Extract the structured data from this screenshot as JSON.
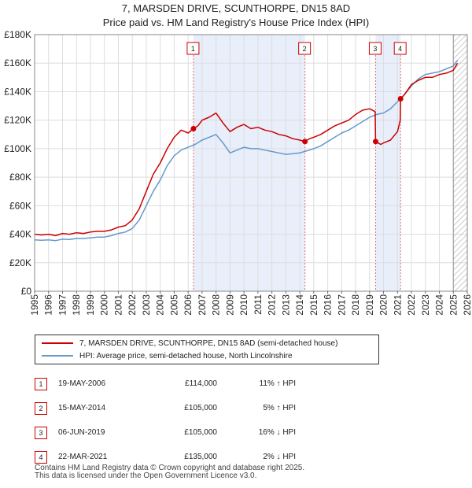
{
  "title_line1": "7, MARSDEN DRIVE, SCUNTHORPE, DN15 8AD",
  "title_line2": "Price paid vs. HM Land Registry's House Price Index (HPI)",
  "colors": {
    "price_line": "#cc0000",
    "hpi_line": "#6699cc",
    "shade": "#e8eefa",
    "vline": "#e07070",
    "hatch": "#bbbbbb"
  },
  "legend": {
    "price_label": "7, MARSDEN DRIVE, SCUNTHORPE, DN15 8AD (semi-detached house)",
    "hpi_label": "HPI: Average price, semi-detached house, North Lincolnshire"
  },
  "transactions": [
    {
      "num": "1",
      "date": "19-MAY-2006",
      "price": "£114,000",
      "hpi": "11% ↑ HPI"
    },
    {
      "num": "2",
      "date": "15-MAY-2014",
      "price": "£105,000",
      "hpi": "5% ↑ HPI"
    },
    {
      "num": "3",
      "date": "06-JUN-2019",
      "price": "£105,000",
      "hpi": "16% ↓ HPI"
    },
    {
      "num": "4",
      "date": "22-MAR-2021",
      "price": "£135,000",
      "hpi": "2% ↓ HPI"
    }
  ],
  "footer_line1": "Contains HM Land Registry data © Crown copyright and database right 2025.",
  "footer_line2": "This data is licensed under the Open Government Licence v3.0.",
  "chart_data": {
    "type": "line",
    "xlim": [
      1995,
      2026
    ],
    "ylim": [
      0,
      180000
    ],
    "yticks": [
      {
        "value": 0,
        "label": "£0"
      },
      {
        "value": 20000,
        "label": "£20K"
      },
      {
        "value": 40000,
        "label": "£40K"
      },
      {
        "value": 60000,
        "label": "£60K"
      },
      {
        "value": 80000,
        "label": "£80K"
      },
      {
        "value": 100000,
        "label": "£100K"
      },
      {
        "value": 120000,
        "label": "£120K"
      },
      {
        "value": 140000,
        "label": "£140K"
      },
      {
        "value": 160000,
        "label": "£160K"
      },
      {
        "value": 180000,
        "label": "£180K"
      }
    ],
    "xticks": [
      "1995",
      "1996",
      "1997",
      "1998",
      "1999",
      "2000",
      "2001",
      "2002",
      "2003",
      "2004",
      "2005",
      "2006",
      "2007",
      "2008",
      "2009",
      "2010",
      "2011",
      "2012",
      "2013",
      "2014",
      "2015",
      "2016",
      "2017",
      "2018",
      "2019",
      "2020",
      "2021",
      "2022",
      "2023",
      "2024",
      "2025",
      "2026"
    ],
    "shaded_ranges": [
      [
        2006.38,
        2014.37
      ],
      [
        2019.43,
        2021.22
      ]
    ],
    "future_hatch_from": 2025.0,
    "sales": [
      {
        "label": "1",
        "x": 2006.38,
        "y": 114000
      },
      {
        "label": "2",
        "x": 2014.37,
        "y": 105000
      },
      {
        "label": "3",
        "x": 2019.43,
        "y": 105000
      },
      {
        "label": "4",
        "x": 2021.22,
        "y": 135000
      }
    ],
    "series": [
      {
        "name": "7, MARSDEN DRIVE, SCUNTHORPE, DN15 8AD (semi-detached house)",
        "x": [
          1995,
          1995.5,
          1996,
          1996.5,
          1997,
          1997.5,
          1998,
          1998.5,
          1999,
          1999.5,
          2000,
          2000.5,
          2001,
          2001.5,
          2002,
          2002.5,
          2003,
          2003.5,
          2004,
          2004.5,
          2005,
          2005.5,
          2006,
          2006.38,
          2006.7,
          2007,
          2007.5,
          2008,
          2008.5,
          2009,
          2009.5,
          2010,
          2010.5,
          2011,
          2011.5,
          2012,
          2012.5,
          2013,
          2013.5,
          2014,
          2014.37,
          2014.7,
          2015,
          2015.5,
          2016,
          2016.5,
          2017,
          2017.5,
          2018,
          2018.5,
          2019,
          2019.4,
          2019.43,
          2019.8,
          2020,
          2020.5,
          2021,
          2021.2,
          2021.22,
          2021.5,
          2022,
          2022.5,
          2023,
          2023.5,
          2024,
          2024.5,
          2025,
          2025.3
        ],
        "values": [
          40000,
          39500,
          40000,
          39000,
          40500,
          40000,
          41000,
          40500,
          41500,
          42000,
          42000,
          43000,
          45000,
          46000,
          50000,
          58000,
          70000,
          82000,
          90000,
          100000,
          108000,
          113000,
          111000,
          114000,
          116000,
          120000,
          122000,
          125000,
          118000,
          112000,
          115000,
          117000,
          114000,
          115000,
          113000,
          112000,
          110000,
          109000,
          107000,
          106000,
          105000,
          107000,
          108000,
          110000,
          113000,
          116000,
          118000,
          120000,
          124000,
          127000,
          128000,
          126000,
          105000,
          103000,
          104000,
          106000,
          112000,
          120000,
          135000,
          138000,
          145000,
          148000,
          150000,
          150000,
          152000,
          153000,
          155000,
          160000
        ]
      },
      {
        "name": "HPI: Average price, semi-detached house, North Lincolnshire",
        "x": [
          1995,
          1995.5,
          1996,
          1996.5,
          1997,
          1997.5,
          1998,
          1998.5,
          1999,
          1999.5,
          2000,
          2000.5,
          2001,
          2001.5,
          2002,
          2002.5,
          2003,
          2003.5,
          2004,
          2004.5,
          2005,
          2005.5,
          2006,
          2006.5,
          2007,
          2007.5,
          2008,
          2008.5,
          2009,
          2009.5,
          2010,
          2010.5,
          2011,
          2011.5,
          2012,
          2012.5,
          2013,
          2013.5,
          2014,
          2014.5,
          2015,
          2015.5,
          2016,
          2016.5,
          2017,
          2017.5,
          2018,
          2018.5,
          2019,
          2019.5,
          2020,
          2020.5,
          2021,
          2021.5,
          2022,
          2022.5,
          2023,
          2023.5,
          2024,
          2024.5,
          2025,
          2025.3
        ],
        "values": [
          36000,
          35800,
          36000,
          35500,
          36500,
          36300,
          37000,
          37000,
          37500,
          38000,
          38000,
          39000,
          40500,
          41500,
          44000,
          50000,
          60000,
          70000,
          78000,
          88000,
          95000,
          99000,
          101000,
          103000,
          106000,
          108000,
          110000,
          104000,
          97000,
          99000,
          101000,
          100000,
          100000,
          99000,
          98000,
          97000,
          96000,
          96500,
          97000,
          98500,
          100000,
          102000,
          105000,
          108000,
          111000,
          113000,
          116000,
          119000,
          122000,
          124000,
          125000,
          128000,
          133000,
          138000,
          144000,
          149000,
          152000,
          153000,
          154000,
          156000,
          158000,
          162000
        ]
      }
    ]
  }
}
